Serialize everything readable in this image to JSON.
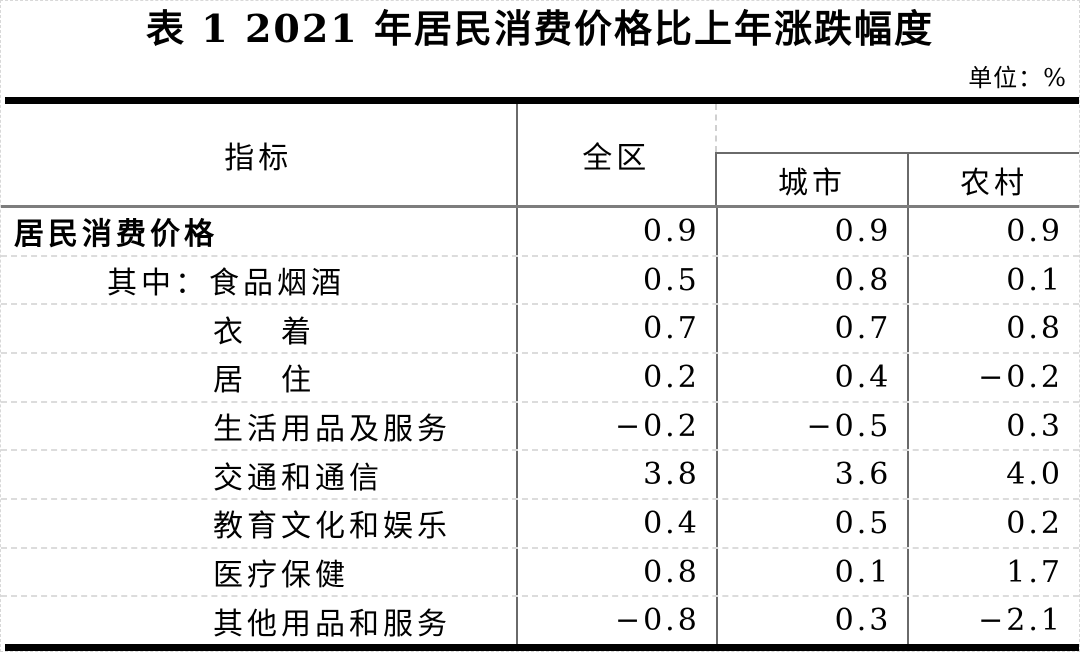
{
  "title": "表 1 2021 年居民消费价格比上年涨跌幅度",
  "unit": "单位：%",
  "table": {
    "columns": {
      "indicator": "指标",
      "total": "全区",
      "city": "城市",
      "rural": "农村"
    },
    "rows": [
      {
        "label": "居民消费价格",
        "values": [
          "0.9",
          "0.9",
          "0.9"
        ]
      },
      {
        "label": "其中：食品烟酒",
        "values": [
          "0.5",
          "0.8",
          "0.1"
        ]
      },
      {
        "label": "衣　着",
        "values": [
          "0.7",
          "0.7",
          "0.8"
        ]
      },
      {
        "label": "居　住",
        "values": [
          "0.2",
          "0.4",
          "−0.2"
        ]
      },
      {
        "label": "生活用品及服务",
        "values": [
          "−0.2",
          "−0.5",
          "0.3"
        ]
      },
      {
        "label": "交通和通信",
        "values": [
          "3.8",
          "3.6",
          "4.0"
        ]
      },
      {
        "label": "教育文化和娱乐",
        "values": [
          "0.4",
          "0.5",
          "0.2"
        ]
      },
      {
        "label": "医疗保健",
        "values": [
          "0.8",
          "0.1",
          "1.7"
        ]
      },
      {
        "label": "其他用品和服务",
        "values": [
          "−0.8",
          "0.3",
          "−2.1"
        ]
      }
    ]
  },
  "chart_data": {
    "type": "table",
    "title": "表 1 2021 年居民消费价格比上年涨跌幅度",
    "unit": "%",
    "columns": [
      "指标",
      "全区",
      "城市",
      "农村"
    ],
    "rows": [
      [
        "居民消费价格",
        0.9,
        0.9,
        0.9
      ],
      [
        "其中：食品烟酒",
        0.5,
        0.8,
        0.1
      ],
      [
        "衣着",
        0.7,
        0.7,
        0.8
      ],
      [
        "居住",
        0.2,
        0.4,
        -0.2
      ],
      [
        "生活用品及服务",
        -0.2,
        -0.5,
        0.3
      ],
      [
        "交通和通信",
        3.8,
        3.6,
        4.0
      ],
      [
        "教育文化和娱乐",
        0.4,
        0.5,
        0.2
      ],
      [
        "医疗保健",
        0.8,
        0.1,
        1.7
      ],
      [
        "其他用品和服务",
        -0.8,
        0.3,
        -2.1
      ]
    ]
  }
}
